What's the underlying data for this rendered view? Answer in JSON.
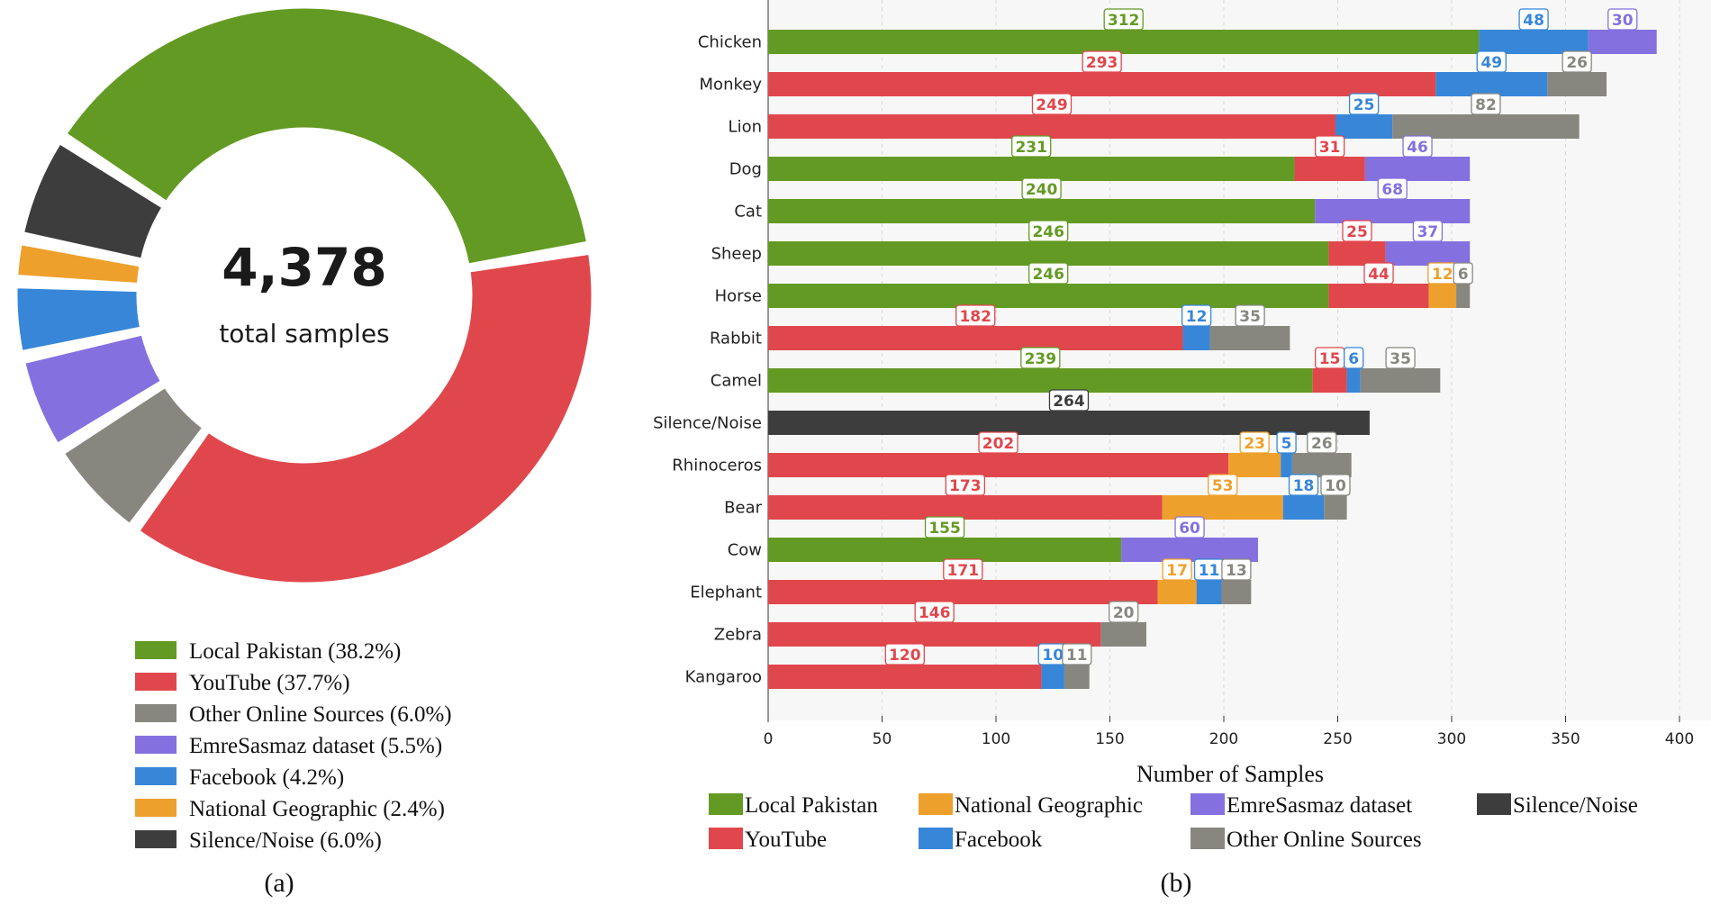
{
  "colors": {
    "local": "#639a24",
    "youtube": "#e0474c",
    "other": "#878780",
    "emre": "#8470de",
    "facebook": "#3786d8",
    "natgeo": "#eea02c",
    "silence": "#3d3d3d"
  },
  "chart_data": [
    {
      "type": "pie",
      "center_value": "4,378",
      "center_label": "total samples",
      "caption": "(a)",
      "slices": [
        {
          "key": "local",
          "label": "Local Pakistan (38.2%)",
          "value": 38.2
        },
        {
          "key": "youtube",
          "label": "YouTube (37.7%)",
          "value": 37.7
        },
        {
          "key": "other",
          "label": "Other Online Sources (6.0%)",
          "value": 6.0
        },
        {
          "key": "emre",
          "label": "EmreSasmaz dataset (5.5%)",
          "value": 5.5
        },
        {
          "key": "facebook",
          "label": "Facebook (4.2%)",
          "value": 4.2
        },
        {
          "key": "natgeo",
          "label": "National Geographic (2.4%)",
          "value": 2.4
        },
        {
          "key": "silence",
          "label": "Silence/Noise (6.0%)",
          "value": 6.0
        }
      ]
    },
    {
      "type": "bar",
      "orientation": "horizontal",
      "stacked": true,
      "caption": "(b)",
      "xlabel": "Number of Samples",
      "xlim": [
        0,
        410
      ],
      "xticks": [
        0,
        50,
        100,
        150,
        200,
        250,
        300,
        350,
        400
      ],
      "grid": "vertical dashed",
      "series_order": [
        "local",
        "youtube",
        "natgeo",
        "facebook",
        "emre",
        "silence",
        "other"
      ],
      "legend": [
        {
          "key": "local",
          "label": "Local Pakistan"
        },
        {
          "key": "natgeo",
          "label": "National Geographic"
        },
        {
          "key": "emre",
          "label": "EmreSasmaz dataset"
        },
        {
          "key": "silence",
          "label": "Silence/Noise"
        },
        {
          "key": "youtube",
          "label": "YouTube"
        },
        {
          "key": "facebook",
          "label": "Facebook"
        },
        {
          "key": "other",
          "label": "Other Online Sources"
        }
      ],
      "categories": [
        {
          "label": "Chicken",
          "segments": [
            {
              "key": "local",
              "value": 312
            },
            {
              "key": "facebook",
              "value": 48
            },
            {
              "key": "emre",
              "value": 30
            }
          ]
        },
        {
          "label": "Monkey",
          "segments": [
            {
              "key": "youtube",
              "value": 293
            },
            {
              "key": "facebook",
              "value": 49
            },
            {
              "key": "other",
              "value": 26
            }
          ]
        },
        {
          "label": "Lion",
          "segments": [
            {
              "key": "youtube",
              "value": 249
            },
            {
              "key": "facebook",
              "value": 25
            },
            {
              "key": "other",
              "value": 82
            }
          ]
        },
        {
          "label": "Dog",
          "segments": [
            {
              "key": "local",
              "value": 231
            },
            {
              "key": "youtube",
              "value": 31
            },
            {
              "key": "emre",
              "value": 46
            }
          ]
        },
        {
          "label": "Cat",
          "segments": [
            {
              "key": "local",
              "value": 240
            },
            {
              "key": "emre",
              "value": 68
            }
          ]
        },
        {
          "label": "Sheep",
          "segments": [
            {
              "key": "local",
              "value": 246
            },
            {
              "key": "youtube",
              "value": 25
            },
            {
              "key": "emre",
              "value": 37
            }
          ]
        },
        {
          "label": "Horse",
          "segments": [
            {
              "key": "local",
              "value": 246
            },
            {
              "key": "youtube",
              "value": 44
            },
            {
              "key": "natgeo",
              "value": 12
            },
            {
              "key": "other",
              "value": 6
            }
          ]
        },
        {
          "label": "Rabbit",
          "segments": [
            {
              "key": "youtube",
              "value": 182
            },
            {
              "key": "facebook",
              "value": 12
            },
            {
              "key": "other",
              "value": 35
            }
          ]
        },
        {
          "label": "Camel",
          "segments": [
            {
              "key": "local",
              "value": 239
            },
            {
              "key": "youtube",
              "value": 15
            },
            {
              "key": "facebook",
              "value": 6
            },
            {
              "key": "other",
              "value": 35
            }
          ]
        },
        {
          "label": "Silence/Noise",
          "segments": [
            {
              "key": "silence",
              "value": 264
            }
          ]
        },
        {
          "label": "Rhinoceros",
          "segments": [
            {
              "key": "youtube",
              "value": 202
            },
            {
              "key": "natgeo",
              "value": 23
            },
            {
              "key": "facebook",
              "value": 5
            },
            {
              "key": "other",
              "value": 26
            }
          ]
        },
        {
          "label": "Bear",
          "segments": [
            {
              "key": "youtube",
              "value": 173
            },
            {
              "key": "natgeo",
              "value": 53
            },
            {
              "key": "facebook",
              "value": 18
            },
            {
              "key": "other",
              "value": 10
            }
          ]
        },
        {
          "label": "Cow",
          "segments": [
            {
              "key": "local",
              "value": 155
            },
            {
              "key": "emre",
              "value": 60
            }
          ]
        },
        {
          "label": "Elephant",
          "segments": [
            {
              "key": "youtube",
              "value": 171
            },
            {
              "key": "natgeo",
              "value": 17
            },
            {
              "key": "facebook",
              "value": 11
            },
            {
              "key": "other",
              "value": 13
            }
          ]
        },
        {
          "label": "Zebra",
          "segments": [
            {
              "key": "youtube",
              "value": 146
            },
            {
              "key": "other",
              "value": 20
            }
          ]
        },
        {
          "label": "Kangaroo",
          "segments": [
            {
              "key": "youtube",
              "value": 120
            },
            {
              "key": "facebook",
              "value": 10
            },
            {
              "key": "other",
              "value": 11
            }
          ]
        }
      ]
    }
  ]
}
